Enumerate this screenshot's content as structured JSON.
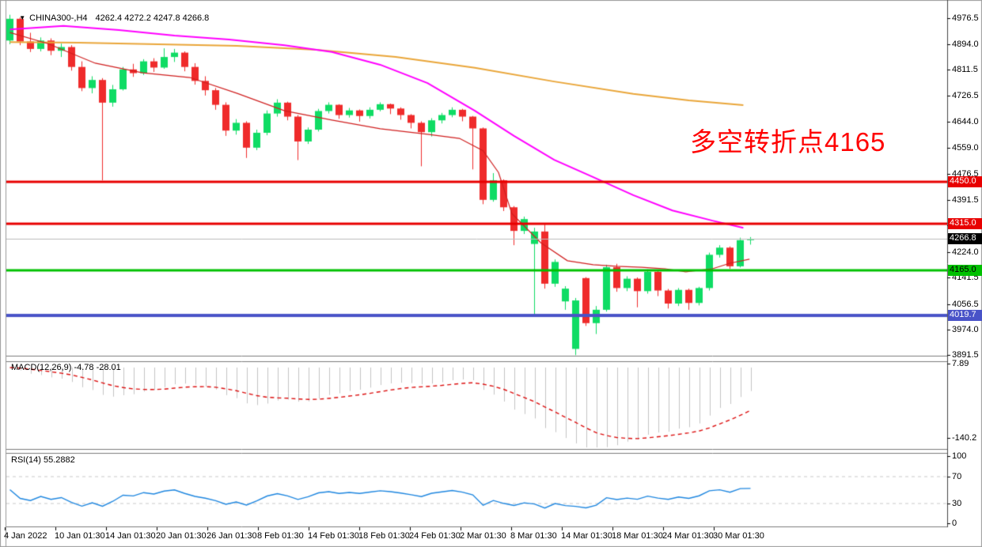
{
  "header": {
    "collapse_icon": "▼",
    "symbol": "CHINA300-,H4",
    "ohlc": "4262.4 4272.2 4247.8 4266.8"
  },
  "chart_data": {
    "type": "candlestick",
    "symbol": "CHINA300-",
    "timeframe": "H4",
    "last_bar": {
      "open": 4262.4,
      "high": 4272.2,
      "low": 4247.8,
      "close": 4266.8
    },
    "price_axis_ticks": [
      "4976.5",
      "4894.0",
      "4811.5",
      "4726.5",
      "4644.0",
      "4559.0",
      "4476.5",
      "4391.5",
      "4309.0",
      "4224.0",
      "4141.5",
      "4056.5",
      "3974.0",
      "3891.5"
    ],
    "x_axis_labels": [
      "4 Jan 2022",
      "10 Jan 01:30",
      "14 Jan 01:30",
      "20 Jan 01:30",
      "26 Jan 01:30",
      "8 Feb 01:30",
      "14 Feb 01:30",
      "18 Feb 01:30",
      "24 Feb 01:30",
      "2 Mar 01:30",
      "8 Mar 01:30",
      "14 Mar 01:30",
      "18 Mar 01:30",
      "24 Mar 01:30",
      "30 Mar 01:30"
    ],
    "candles": [
      [
        4905,
        4988,
        4893,
        4975
      ],
      [
        4975,
        4980,
        4890,
        4902
      ],
      [
        4902,
        4930,
        4868,
        4878
      ],
      [
        4878,
        4915,
        4870,
        4905
      ],
      [
        4905,
        4912,
        4858,
        4872
      ],
      [
        4872,
        4895,
        4852,
        4884
      ],
      [
        4884,
        4890,
        4808,
        4820
      ],
      [
        4820,
        4838,
        4742,
        4752
      ],
      [
        4752,
        4790,
        4735,
        4778
      ],
      [
        4778,
        4784,
        4455,
        4705
      ],
      [
        4705,
        4762,
        4692,
        4748
      ],
      [
        4748,
        4820,
        4744,
        4812
      ],
      [
        4812,
        4830,
        4788,
        4800
      ],
      [
        4800,
        4845,
        4794,
        4838
      ],
      [
        4838,
        4848,
        4804,
        4818
      ],
      [
        4818,
        4880,
        4814,
        4852
      ],
      [
        4852,
        4878,
        4836,
        4866
      ],
      [
        4866,
        4870,
        4806,
        4820
      ],
      [
        4820,
        4832,
        4763,
        4775
      ],
      [
        4775,
        4790,
        4728,
        4745
      ],
      [
        4745,
        4752,
        4682,
        4698
      ],
      [
        4698,
        4706,
        4598,
        4615
      ],
      [
        4615,
        4652,
        4602,
        4640
      ],
      [
        4640,
        4645,
        4527,
        4560
      ],
      [
        4560,
        4618,
        4552,
        4608
      ],
      [
        4608,
        4680,
        4600,
        4670
      ],
      [
        4670,
        4716,
        4660,
        4705
      ],
      [
        4705,
        4708,
        4648,
        4660
      ],
      [
        4660,
        4665,
        4520,
        4580
      ],
      [
        4580,
        4625,
        4572,
        4618
      ],
      [
        4618,
        4685,
        4612,
        4678
      ],
      [
        4678,
        4706,
        4670,
        4698
      ],
      [
        4698,
        4700,
        4653,
        4665
      ],
      [
        4665,
        4688,
        4657,
        4680
      ],
      [
        4680,
        4683,
        4644,
        4662
      ],
      [
        4662,
        4690,
        4654,
        4682
      ],
      [
        4682,
        4706,
        4677,
        4700
      ],
      [
        4700,
        4702,
        4668,
        4686
      ],
      [
        4686,
        4690,
        4650,
        4665
      ],
      [
        4665,
        4668,
        4622,
        4640
      ],
      [
        4640,
        4645,
        4500,
        4610
      ],
      [
        4610,
        4655,
        4596,
        4648
      ],
      [
        4648,
        4672,
        4638,
        4665
      ],
      [
        4665,
        4690,
        4658,
        4682
      ],
      [
        4682,
        4685,
        4645,
        4660
      ],
      [
        4660,
        4662,
        4490,
        4622
      ],
      [
        4622,
        4625,
        4378,
        4392
      ],
      [
        4392,
        4478,
        4386,
        4455
      ],
      [
        4455,
        4458,
        4356,
        4368
      ],
      [
        4368,
        4372,
        4246,
        4292
      ],
      [
        4292,
        4338,
        4282,
        4330
      ],
      [
        4250,
        4302,
        4020,
        4290
      ],
      [
        4290,
        4312,
        4106,
        4122
      ],
      [
        4122,
        4200,
        4112,
        4192
      ],
      [
        4065,
        4114,
        4038,
        4106
      ],
      [
        3912,
        4076,
        3892,
        4068
      ],
      [
        4140,
        4143,
        3986,
        3995
      ],
      [
        3995,
        4050,
        3960,
        4038
      ],
      [
        4038,
        4183,
        4032,
        4175
      ],
      [
        4175,
        4186,
        4096,
        4108
      ],
      [
        4108,
        4146,
        4098,
        4138
      ],
      [
        4138,
        4142,
        4046,
        4098
      ],
      [
        4098,
        4168,
        4090,
        4160
      ],
      [
        4160,
        4163,
        4082,
        4100
      ],
      [
        4100,
        4105,
        4042,
        4058
      ],
      [
        4058,
        4108,
        4050,
        4102
      ],
      [
        4102,
        4106,
        4038,
        4060
      ],
      [
        4060,
        4112,
        4052,
        4108
      ],
      [
        4108,
        4222,
        4100,
        4215
      ],
      [
        4215,
        4246,
        4206,
        4238
      ],
      [
        4238,
        4242,
        4170,
        4178
      ],
      [
        4178,
        4270,
        4174,
        4262
      ],
      [
        4262.4,
        4272.2,
        4247.8,
        4266.8
      ]
    ],
    "up_color": "#0fdc64",
    "down_color": "#ef2b2b",
    "moving_averages": [
      {
        "name": "ma-slow",
        "color": "#eaa639",
        "width": 2,
        "points": [
          [
            0,
            4900
          ],
          [
            6.7,
            4898
          ],
          [
            14.4,
            4893
          ],
          [
            22.1,
            4888
          ],
          [
            29.8,
            4875
          ],
          [
            37.5,
            4852
          ],
          [
            45.2,
            4817
          ],
          [
            52.9,
            4773
          ],
          [
            60.6,
            4733
          ],
          [
            66,
            4712
          ],
          [
            71.3,
            4697
          ]
        ]
      },
      {
        "name": "ma-mid",
        "color": "#ff00ff",
        "width": 2,
        "points": [
          [
            0,
            4941
          ],
          [
            5.2,
            4952
          ],
          [
            10.6,
            4939
          ],
          [
            16,
            4921
          ],
          [
            21.3,
            4908
          ],
          [
            26.7,
            4890
          ],
          [
            31.3,
            4868
          ],
          [
            36,
            4827
          ],
          [
            40.6,
            4768
          ],
          [
            45.2,
            4679
          ],
          [
            49,
            4598
          ],
          [
            52.9,
            4521
          ],
          [
            56.5,
            4468
          ],
          [
            60.6,
            4407
          ],
          [
            64.4,
            4358
          ],
          [
            68.3,
            4325
          ],
          [
            71.3,
            4302
          ]
        ]
      },
      {
        "name": "ma-fast",
        "color": "#d01f1f",
        "width": 1.2,
        "points": [
          [
            0,
            4931
          ],
          [
            3.7,
            4895
          ],
          [
            8.3,
            4832
          ],
          [
            12.9,
            4801
          ],
          [
            17.5,
            4786
          ],
          [
            22.1,
            4735
          ],
          [
            26.7,
            4679
          ],
          [
            31.3,
            4649
          ],
          [
            36,
            4621
          ],
          [
            40.6,
            4603
          ],
          [
            43.7,
            4590
          ],
          [
            46,
            4550
          ],
          [
            47.5,
            4480
          ],
          [
            48.8,
            4348
          ],
          [
            51.6,
            4254
          ],
          [
            54.2,
            4196
          ],
          [
            56.7,
            4183
          ],
          [
            59,
            4178
          ],
          [
            61.4,
            4175
          ],
          [
            63.7,
            4170
          ],
          [
            65.7,
            4160
          ],
          [
            68.3,
            4170
          ],
          [
            70,
            4188
          ],
          [
            71.9,
            4201
          ]
        ]
      }
    ],
    "horizontal_lines": [
      {
        "price": 4450.0,
        "label": "4450.0",
        "color": "#e80000",
        "badge_bg": "#e80000",
        "badge_fg": "#ffffff",
        "thickness": 3
      },
      {
        "price": 4315.0,
        "label": "4315.0",
        "color": "#e80000",
        "badge_bg": "#e80000",
        "badge_fg": "#ffffff",
        "thickness": 3
      },
      {
        "price": 4165.0,
        "label": "4165.0",
        "color": "#00c000",
        "badge_bg": "#00c000",
        "badge_fg": "#000000",
        "thickness": 3
      },
      {
        "price": 4019.7,
        "label": "4019.7",
        "color": "#4953c8",
        "badge_bg": "#4953c8",
        "badge_fg": "#ffffff",
        "thickness": 4
      }
    ],
    "current_price": {
      "value": 4266.8,
      "label": "4266.8",
      "line_color": "#bbbbbb",
      "badge_bg": "#000000",
      "badge_fg": "#ffffff"
    },
    "indicators": {
      "macd": {
        "label": "MACD(12,26,9) -4.78 -28.01",
        "fast": 12,
        "slow": 26,
        "signal": 9,
        "value": -4.78,
        "signal_value": -28.01,
        "axis_ticks": [
          {
            "text": "7.89",
            "value": 7.89
          },
          {
            "text": "-140.2",
            "value": -140.2
          }
        ],
        "histogram_color": "#c4c4c4",
        "signal_color": "#dd1111"
      },
      "rsi": {
        "label": "RSI(14) 55.2882",
        "period": 14,
        "value": 55.2882,
        "axis_ticks": [
          {
            "text": "100",
            "value": 100
          },
          {
            "text": "70",
            "value": 70
          },
          {
            "text": "30",
            "value": 30
          },
          {
            "text": "0",
            "value": 0
          }
        ],
        "levels": [
          70,
          30
        ],
        "line_color": "#1f87e0",
        "level_color": "#c9c9c9"
      }
    },
    "annotation": {
      "text": "多空转折点4165",
      "color": "#ff0000"
    }
  }
}
